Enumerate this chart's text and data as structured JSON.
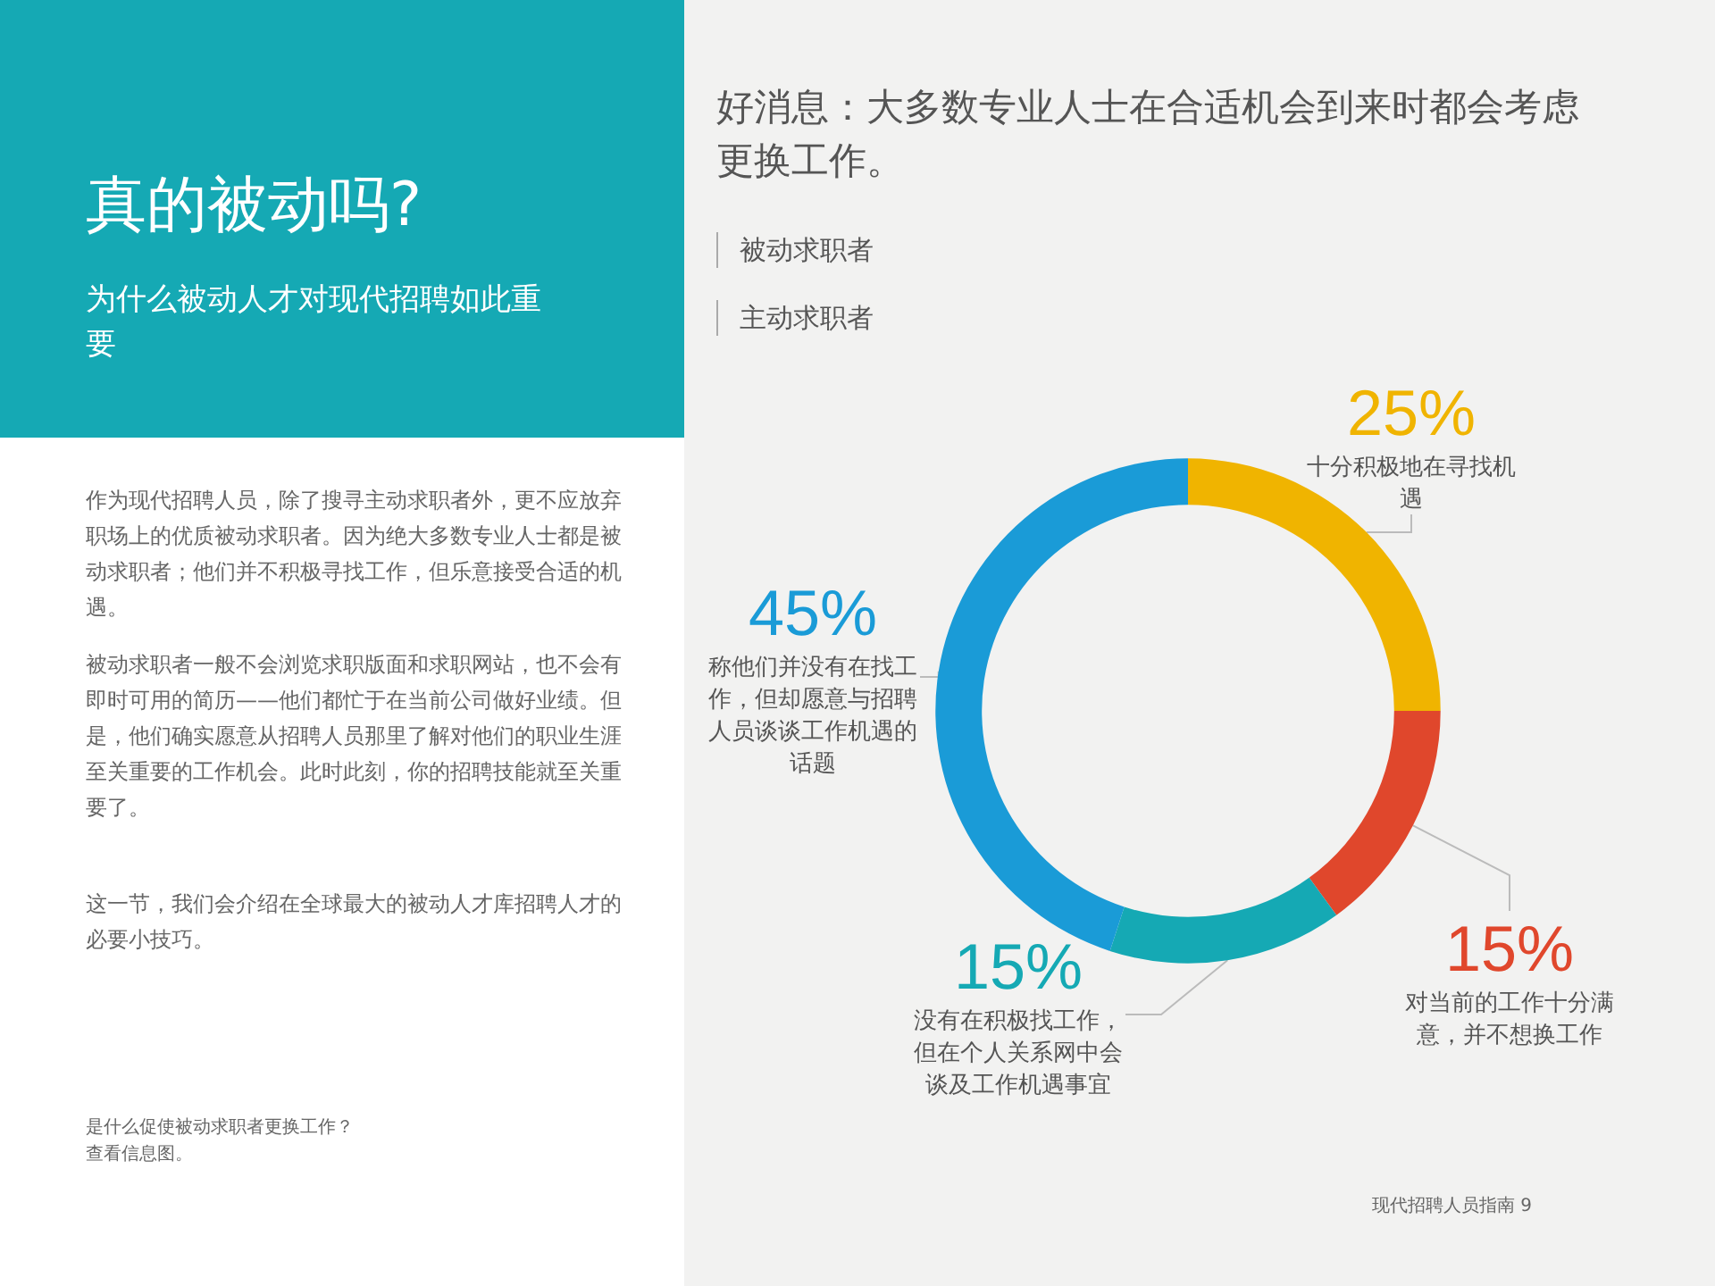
{
  "chart_data": {
    "type": "donut",
    "title": "真的被动吗?",
    "subtitle": "为什么被动人才对现代招聘如此重要",
    "categories": [
      "十分积极地在寻找机遇",
      "对当前的工作十分满意，并不想换工作",
      "没有在积极找工作，但在个人关系网中会谈及工作机遇事宜",
      "称他们并没有在找工作，但却愿意与招聘人员谈谈工作机遇的话题"
    ],
    "values": [
      25,
      15,
      15,
      45
    ],
    "value_labels": [
      "25%",
      "15%",
      "15%",
      "45%"
    ],
    "colors": [
      "#f0b400",
      "#e0472c",
      "#15a9b4",
      "#1a9bd7"
    ],
    "legend": false,
    "annotations": [
      "好消息：大多数专业人士在合适机会到来时都会考虑更换工作。",
      "被动求职者",
      "主动求职者",
      "作为现代招聘人员，除了搜寻主动求职者外，更不应放弃职场上的优质被动求职者。因为绝大多数专业人士都是被动求职者；他们并不积极寻找工作，但乐意接受合适的机遇。",
      "被动求职者一般不会浏览求职版面和求职网站，也不会有即时可用的简历——他们都忙于在当前公司做好业绩。但是，他们确实愿意从招聘人员那里了解对他们的职业生涯至关重要的工作机会。此时此刻，你的招聘技能就至关重要了。",
      "这一节，我们会介绍在全球最大的被动人才库招聘人才的必要小技巧。",
      "是什么促使被动求职者更换工作？",
      "查看信息图。",
      "现代招聘人员指南 9"
    ]
  }
}
